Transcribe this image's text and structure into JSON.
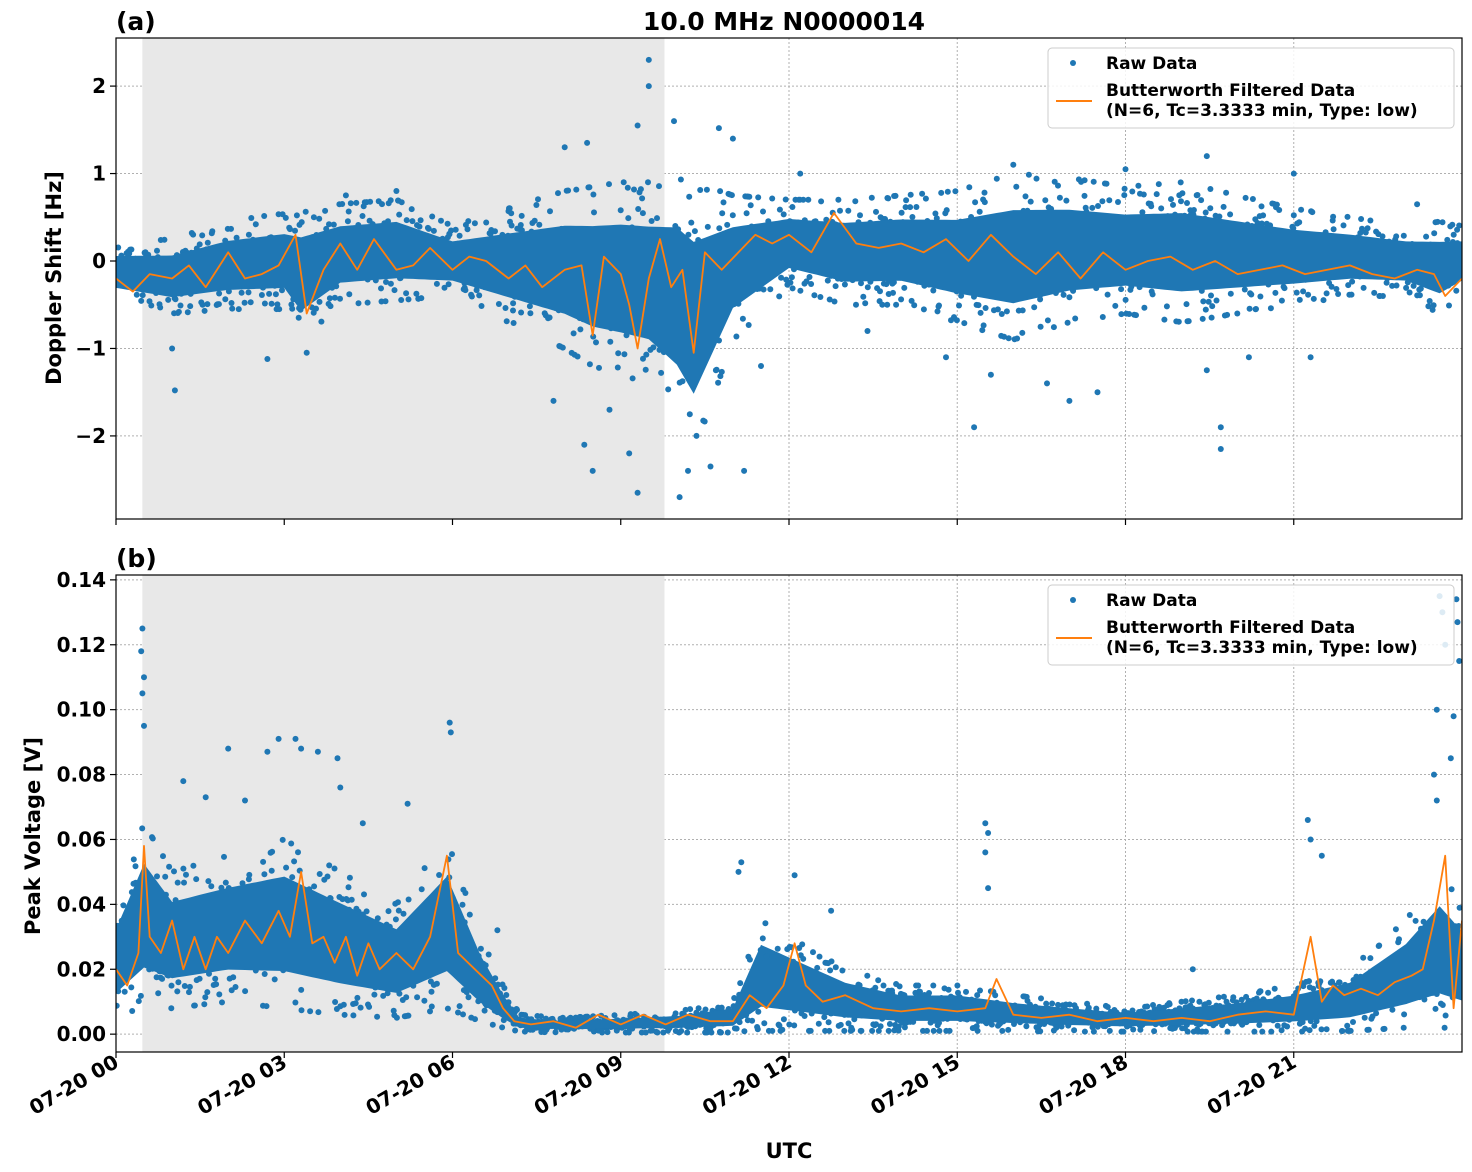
{
  "figure_title": "10.0 MHz N0000014",
  "xlabel": "UTC",
  "x_tick_labels": [
    "07-20 00",
    "07-20 03",
    "07-20 06",
    "07-20 09",
    "07-20 12",
    "07-20 15",
    "07-20 18",
    "07-20 21"
  ],
  "colors": {
    "raw": "#1f77b4",
    "filtered": "#ff7f0e",
    "shade": "#e8e8e8",
    "grid": "#b0b0b0"
  },
  "chart_data": [
    {
      "type": "scatter",
      "panel_label": "(a)",
      "title": "10.0 MHz N0000014",
      "xlabel": "",
      "ylabel": "Doppler Shift [Hz]",
      "x_unit": "hours UTC",
      "xlim": [
        0,
        24
      ],
      "ylim": [
        -2.95,
        2.55
      ],
      "yticks": [
        2,
        1,
        0,
        -1,
        -2
      ],
      "ytick_labels": [
        "2",
        "1",
        "0",
        "−1",
        "−2"
      ],
      "grid": true,
      "legend_position": "upper right",
      "shaded_x_range": [
        0.47,
        9.78
      ],
      "series": [
        {
          "name": "Raw Data",
          "kind": "scatter",
          "envelope": {
            "x": [
              0,
              1,
              2,
              3,
              3.3,
              4,
              5,
              6,
              7,
              8,
              8.5,
              9,
              9.5,
              10,
              10.3,
              11,
              12,
              13,
              14,
              15,
              16,
              17,
              18,
              19,
              20,
              21,
              22,
              23,
              23.6,
              24
            ],
            "low": [
              -0.45,
              -0.6,
              -0.55,
              -0.55,
              -0.9,
              -0.5,
              -0.45,
              -0.4,
              -0.7,
              -1.0,
              -1.2,
              -1.3,
              -1.4,
              -1.8,
              -2.2,
              -0.9,
              -0.3,
              -0.5,
              -0.5,
              -0.7,
              -0.9,
              -0.7,
              -0.6,
              -0.7,
              -0.6,
              -0.5,
              -0.4,
              -0.4,
              -0.6,
              -0.4
            ],
            "high": [
              0.2,
              0.25,
              0.45,
              0.55,
              0.6,
              0.65,
              0.7,
              0.4,
              0.6,
              0.8,
              0.85,
              0.9,
              0.9,
              1.0,
              0.9,
              0.75,
              0.7,
              0.7,
              0.75,
              0.8,
              1.0,
              0.95,
              0.85,
              0.9,
              0.75,
              0.6,
              0.5,
              0.4,
              0.45,
              0.4
            ]
          },
          "outliers": [
            [
              1.05,
              -1.48
            ],
            [
              1.0,
              -1.0
            ],
            [
              2.7,
              -1.12
            ],
            [
              3.4,
              -1.05
            ],
            [
              7.8,
              -1.6
            ],
            [
              8.35,
              -2.1
            ],
            [
              8.5,
              -2.4
            ],
            [
              8.8,
              -1.7
            ],
            [
              9.15,
              -2.2
            ],
            [
              9.3,
              -2.65
            ],
            [
              9.5,
              2.3
            ],
            [
              9.5,
              2.0
            ],
            [
              9.3,
              1.55
            ],
            [
              10.05,
              -2.7
            ],
            [
              10.2,
              -2.4
            ],
            [
              10.35,
              -2.0
            ],
            [
              10.6,
              -2.35
            ],
            [
              10.75,
              1.52
            ],
            [
              11.0,
              1.4
            ],
            [
              11.2,
              -2.4
            ],
            [
              9.95,
              1.6
            ],
            [
              8.0,
              1.3
            ],
            [
              8.4,
              1.35
            ],
            [
              15.3,
              -1.9
            ],
            [
              15.6,
              -1.3
            ],
            [
              16.6,
              -1.4
            ],
            [
              17.0,
              -1.6
            ],
            [
              17.5,
              -1.5
            ],
            [
              19.45,
              -1.25
            ],
            [
              19.7,
              -1.9
            ],
            [
              19.7,
              -2.15
            ],
            [
              19.45,
              1.2
            ],
            [
              21.0,
              1.0
            ],
            [
              23.2,
              0.65
            ],
            [
              21.3,
              -1.1
            ],
            [
              13.4,
              -0.8
            ],
            [
              16.0,
              1.1
            ],
            [
              18.0,
              1.05
            ],
            [
              12.2,
              1.0
            ],
            [
              5.0,
              0.8
            ],
            [
              4.1,
              0.75
            ],
            [
              11.5,
              -1.2
            ],
            [
              14.8,
              -1.1
            ],
            [
              20.2,
              -1.1
            ]
          ]
        },
        {
          "name": "Butterworth Filtered Data\n(N=6, Tc=3.3333 min, Type: low)",
          "kind": "line",
          "x": [
            0,
            0.3,
            0.6,
            1.0,
            1.3,
            1.6,
            2.0,
            2.3,
            2.6,
            2.9,
            3.2,
            3.4,
            3.7,
            4.0,
            4.3,
            4.6,
            5.0,
            5.3,
            5.6,
            6.0,
            6.3,
            6.6,
            7.0,
            7.3,
            7.6,
            8.0,
            8.3,
            8.5,
            8.7,
            9.0,
            9.15,
            9.3,
            9.5,
            9.7,
            9.9,
            10.1,
            10.3,
            10.5,
            10.8,
            11.1,
            11.4,
            11.7,
            12.0,
            12.4,
            12.8,
            13.2,
            13.6,
            14.0,
            14.4,
            14.8,
            15.2,
            15.6,
            16.0,
            16.4,
            16.8,
            17.2,
            17.6,
            18.0,
            18.4,
            18.8,
            19.2,
            19.6,
            20.0,
            20.4,
            20.8,
            21.2,
            21.6,
            22.0,
            22.4,
            22.8,
            23.2,
            23.5,
            23.7,
            24.0
          ],
          "y": [
            -0.2,
            -0.35,
            -0.15,
            -0.2,
            -0.05,
            -0.3,
            0.1,
            -0.2,
            -0.15,
            -0.05,
            0.3,
            -0.6,
            -0.1,
            0.2,
            -0.1,
            0.25,
            -0.1,
            -0.05,
            0.15,
            -0.1,
            0.05,
            0.0,
            -0.2,
            -0.05,
            -0.3,
            -0.1,
            -0.05,
            -0.85,
            0.05,
            -0.15,
            -0.5,
            -1.0,
            -0.2,
            0.25,
            -0.3,
            -0.1,
            -1.05,
            0.1,
            -0.1,
            0.1,
            0.3,
            0.2,
            0.3,
            0.1,
            0.55,
            0.2,
            0.15,
            0.2,
            0.1,
            0.25,
            0.0,
            0.3,
            0.05,
            -0.15,
            0.1,
            -0.2,
            0.1,
            -0.1,
            0.0,
            0.05,
            -0.1,
            0.0,
            -0.15,
            -0.1,
            -0.05,
            -0.15,
            -0.1,
            -0.05,
            -0.15,
            -0.2,
            -0.1,
            -0.15,
            -0.4,
            -0.2
          ]
        }
      ]
    },
    {
      "type": "scatter",
      "panel_label": "(b)",
      "xlabel": "UTC",
      "ylabel": "Peak Voltage [V]",
      "x_unit": "hours UTC",
      "xlim": [
        0,
        24
      ],
      "ylim": [
        -0.0055,
        0.1415
      ],
      "yticks": [
        0.0,
        0.02,
        0.04,
        0.06,
        0.08,
        0.1,
        0.12,
        0.14
      ],
      "ytick_labels": [
        "0.00",
        "0.02",
        "0.04",
        "0.06",
        "0.08",
        "0.10",
        "0.12",
        "0.14"
      ],
      "grid": true,
      "legend_position": "upper right",
      "shaded_x_range": [
        0.47,
        9.78
      ],
      "series": [
        {
          "name": "Raw Data",
          "kind": "scatter",
          "envelope": {
            "x": [
              0,
              0.5,
              1,
              2,
              3,
              4,
              5,
              5.9,
              6.5,
              6.9,
              7.2,
              8,
              9,
              10,
              11,
              11.5,
              12,
              13,
              14,
              15,
              16,
              17,
              18,
              19,
              20,
              21,
              22,
              23,
              23.6,
              24
            ],
            "low": [
              0.005,
              0.008,
              0.008,
              0.01,
              0.008,
              0.006,
              0.005,
              0.008,
              0.004,
              0.002,
              0.0008,
              0.0005,
              0.0005,
              0.0005,
              0.0005,
              0.001,
              0.001,
              0.001,
              0.001,
              0.001,
              0.001,
              0.0008,
              0.0008,
              0.0008,
              0.0008,
              0.0008,
              0.001,
              0.002,
              0.002,
              0.002
            ],
            "high": [
              0.04,
              0.065,
              0.05,
              0.055,
              0.06,
              0.05,
              0.04,
              0.06,
              0.03,
              0.015,
              0.006,
              0.005,
              0.006,
              0.007,
              0.01,
              0.035,
              0.03,
              0.02,
              0.015,
              0.015,
              0.012,
              0.01,
              0.008,
              0.01,
              0.012,
              0.015,
              0.02,
              0.035,
              0.05,
              0.04
            ]
          },
          "outliers": [
            [
              0.47,
              0.125
            ],
            [
              0.45,
              0.118
            ],
            [
              0.5,
              0.11
            ],
            [
              0.47,
              0.105
            ],
            [
              0.5,
              0.095
            ],
            [
              1.2,
              0.078
            ],
            [
              1.6,
              0.073
            ],
            [
              2.0,
              0.088
            ],
            [
              2.7,
              0.087
            ],
            [
              2.9,
              0.091
            ],
            [
              3.2,
              0.091
            ],
            [
              3.3,
              0.088
            ],
            [
              3.6,
              0.087
            ],
            [
              3.95,
              0.085
            ],
            [
              4.0,
              0.076
            ],
            [
              5.2,
              0.071
            ],
            [
              5.95,
              0.096
            ],
            [
              5.97,
              0.093
            ],
            [
              4.4,
              0.065
            ],
            [
              2.3,
              0.072
            ],
            [
              11.15,
              0.053
            ],
            [
              11.1,
              0.05
            ],
            [
              12.1,
              0.049
            ],
            [
              12.75,
              0.038
            ],
            [
              15.5,
              0.065
            ],
            [
              15.55,
              0.062
            ],
            [
              15.5,
              0.056
            ],
            [
              15.55,
              0.045
            ],
            [
              19.2,
              0.02
            ],
            [
              21.25,
              0.066
            ],
            [
              21.3,
              0.06
            ],
            [
              21.5,
              0.055
            ],
            [
              23.6,
              0.135
            ],
            [
              23.65,
              0.13
            ],
            [
              23.7,
              0.12
            ],
            [
              23.55,
              0.1
            ],
            [
              23.5,
              0.08
            ],
            [
              23.9,
              0.134
            ],
            [
              23.92,
              0.127
            ],
            [
              23.95,
              0.115
            ],
            [
              23.85,
              0.098
            ],
            [
              23.8,
              0.085
            ],
            [
              23.55,
              0.072
            ],
            [
              6.8,
              0.032
            ],
            [
              11.6,
              0.024
            ]
          ]
        },
        {
          "name": "Butterworth Filtered Data\n(N=6, Tc=3.3333 min, Type: low)",
          "kind": "line",
          "x": [
            0,
            0.2,
            0.4,
            0.5,
            0.6,
            0.8,
            1.0,
            1.2,
            1.4,
            1.6,
            1.8,
            2.0,
            2.3,
            2.6,
            2.9,
            3.1,
            3.3,
            3.5,
            3.7,
            3.9,
            4.1,
            4.3,
            4.5,
            4.7,
            5.0,
            5.3,
            5.6,
            5.9,
            6.1,
            6.4,
            6.7,
            6.9,
            7.1,
            7.4,
            7.8,
            8.2,
            8.6,
            9.0,
            9.4,
            9.8,
            10.2,
            10.6,
            11.0,
            11.3,
            11.6,
            11.9,
            12.1,
            12.3,
            12.6,
            13.0,
            13.5,
            14.0,
            14.5,
            15.0,
            15.5,
            15.7,
            16.0,
            16.5,
            17.0,
            17.5,
            18.0,
            18.5,
            19.0,
            19.5,
            20.0,
            20.5,
            21.0,
            21.3,
            21.5,
            21.7,
            21.9,
            22.2,
            22.5,
            22.8,
            23.1,
            23.3,
            23.5,
            23.7,
            23.85,
            24.0
          ],
          "y": [
            0.02,
            0.015,
            0.025,
            0.058,
            0.03,
            0.025,
            0.035,
            0.02,
            0.03,
            0.02,
            0.03,
            0.025,
            0.035,
            0.028,
            0.038,
            0.03,
            0.05,
            0.028,
            0.03,
            0.022,
            0.03,
            0.018,
            0.028,
            0.02,
            0.025,
            0.02,
            0.03,
            0.055,
            0.025,
            0.02,
            0.015,
            0.008,
            0.004,
            0.003,
            0.004,
            0.002,
            0.006,
            0.003,
            0.006,
            0.003,
            0.006,
            0.004,
            0.004,
            0.012,
            0.008,
            0.015,
            0.028,
            0.015,
            0.01,
            0.012,
            0.008,
            0.007,
            0.008,
            0.007,
            0.008,
            0.017,
            0.006,
            0.005,
            0.006,
            0.004,
            0.005,
            0.004,
            0.005,
            0.004,
            0.006,
            0.007,
            0.006,
            0.03,
            0.01,
            0.015,
            0.012,
            0.014,
            0.012,
            0.016,
            0.018,
            0.02,
            0.035,
            0.055,
            0.008,
            0.035
          ]
        }
      ]
    }
  ]
}
